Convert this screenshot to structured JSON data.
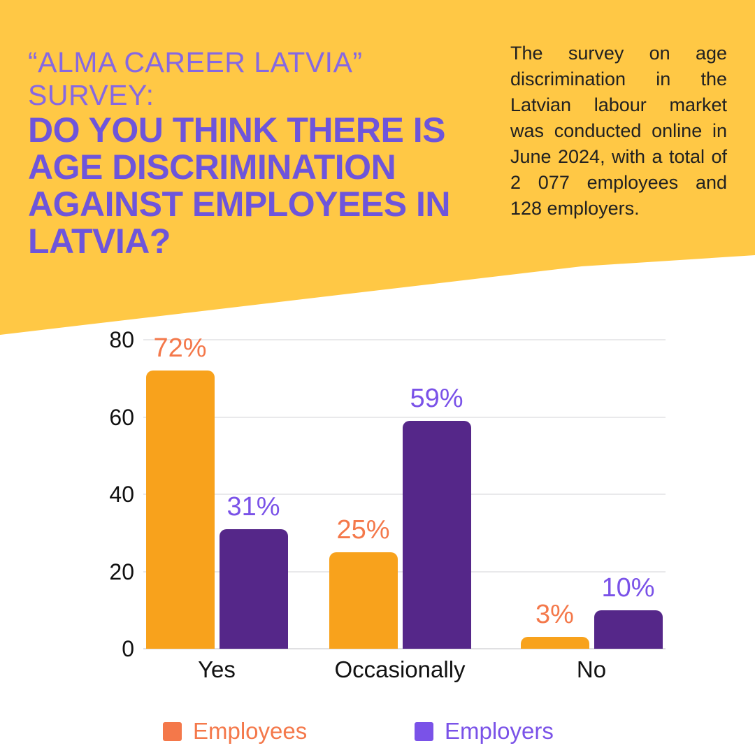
{
  "banner": {
    "eyebrow": "“ALMA CAREER LATVIA” SURVEY:",
    "title": "DO YOU THINK THERE IS\nAGE DISCRIMINATION\nAGAINST EMPLOYEES IN\nLATVIA?",
    "description": "The survey on age discrimination in the Latvian labour market was conducted online in June 2024, with a total of 2 077 employees and 128 employers."
  },
  "colors": {
    "banner_yellow": "#FFC845",
    "eyebrow_purple": "#8668E2",
    "title_purple": "#6E55DB",
    "body_text": "#212121",
    "axis_text": "#111111",
    "gridline": "#E9E9EB",
    "employees_bar": "#F8A21C",
    "employers_bar": "#552789",
    "employees_accent": "#F4784A",
    "employers_accent": "#7A52E8"
  },
  "chart_data": {
    "type": "bar",
    "title": "",
    "xlabel": "",
    "ylabel": "",
    "categories": [
      "Yes",
      "Occasionally",
      "No"
    ],
    "series": [
      {
        "name": "Employees",
        "values": [
          72,
          25,
          3
        ],
        "bar_color": "#F8A21C",
        "accent_color": "#F4784A"
      },
      {
        "name": "Employers",
        "values": [
          31,
          59,
          10
        ],
        "bar_color": "#552789",
        "accent_color": "#7A52E8"
      }
    ],
    "value_suffix": "%",
    "ylim": [
      0,
      80
    ],
    "yticks": [
      0,
      20,
      40,
      60,
      80
    ],
    "grid": true,
    "legend_position": "bottom"
  }
}
